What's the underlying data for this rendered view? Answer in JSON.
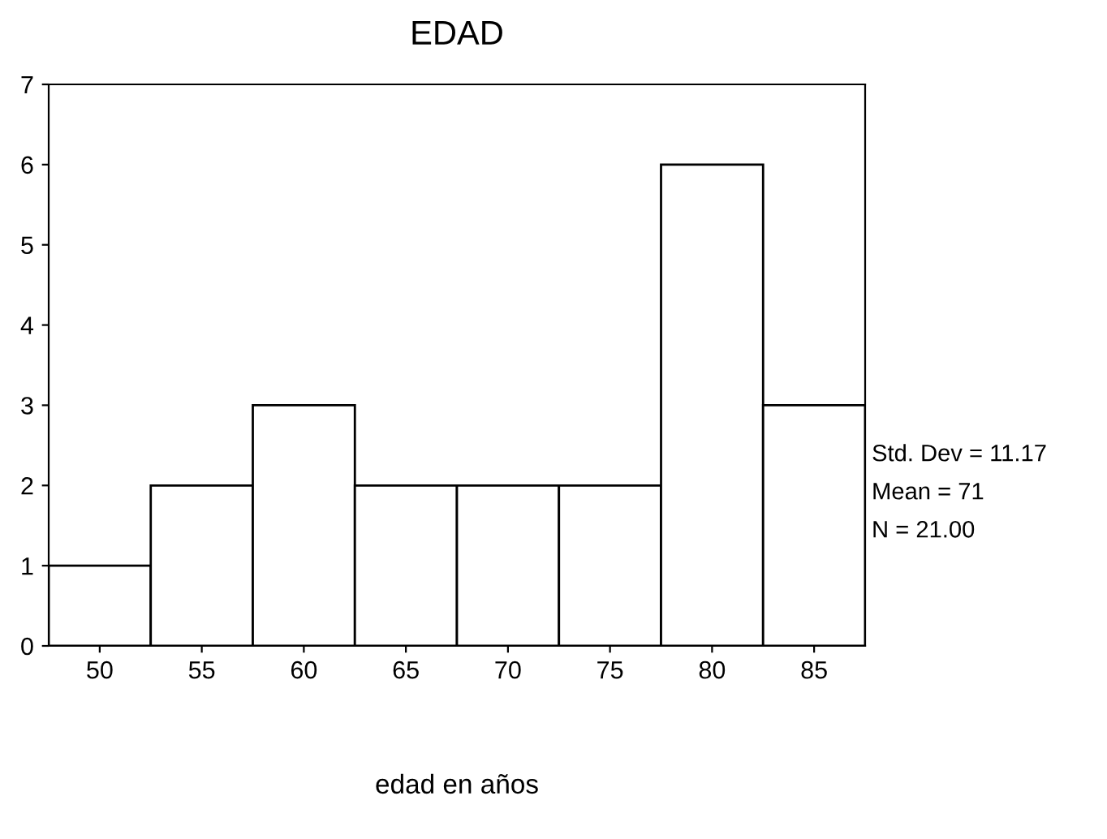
{
  "chart_data": {
    "type": "histogram",
    "title": "EDAD",
    "xlabel": "edad en años",
    "bins": [
      47.5,
      52.5,
      57.5,
      62.5,
      67.5,
      72.5,
      77.5,
      82.5,
      87.5
    ],
    "values": [
      1,
      2,
      3,
      2,
      2,
      2,
      6,
      3
    ],
    "color": "#ffffff",
    "xlim": [
      47.5,
      87.5
    ],
    "xticks": [
      50,
      55,
      60,
      65,
      70,
      75,
      80,
      85
    ],
    "ylim": [
      0,
      7
    ],
    "yticks": [
      0,
      1,
      2,
      3,
      4,
      5,
      6,
      7
    ],
    "grid": false,
    "annotations": [
      "Std. Dev = 11.17",
      "Mean = 71",
      "N = 21.00"
    ]
  }
}
